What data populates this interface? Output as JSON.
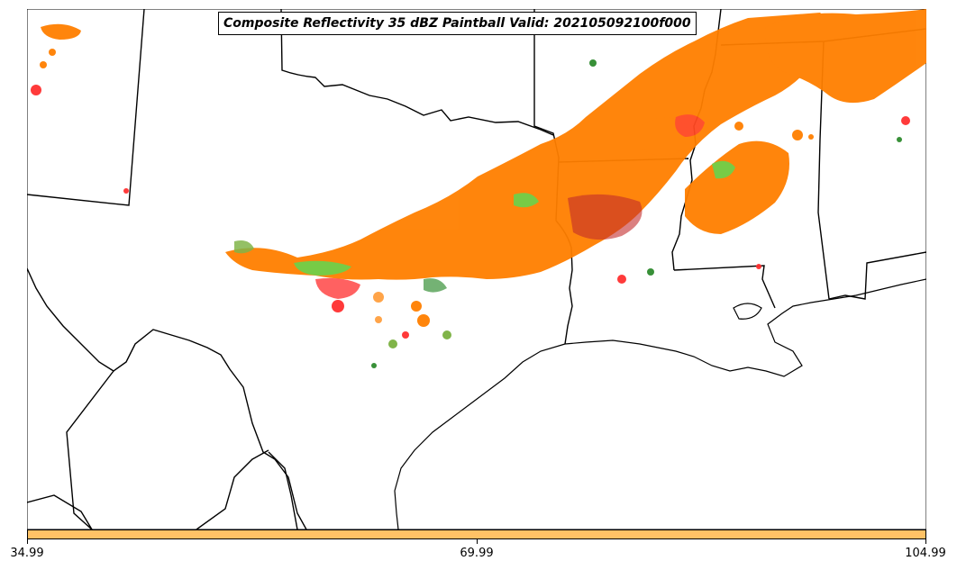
{
  "title": "Composite Reflectivity 35 dBZ Paintball Valid: 202105092100f000",
  "map": {
    "region": "Southern Plains / Gulf Coast US",
    "background_color": "#ffffff",
    "boundary_color": "#000000"
  },
  "paintball_colors": [
    "#ff7f00",
    "#ff3030",
    "#e61a1a",
    "#4cdc4c",
    "#2e8b2e",
    "#8b2323",
    "#ffa040",
    "#7ab040"
  ],
  "colorbar": {
    "fill_color": "#ffc266",
    "ticks": [
      "34.99",
      "69.99",
      "104.99"
    ]
  }
}
